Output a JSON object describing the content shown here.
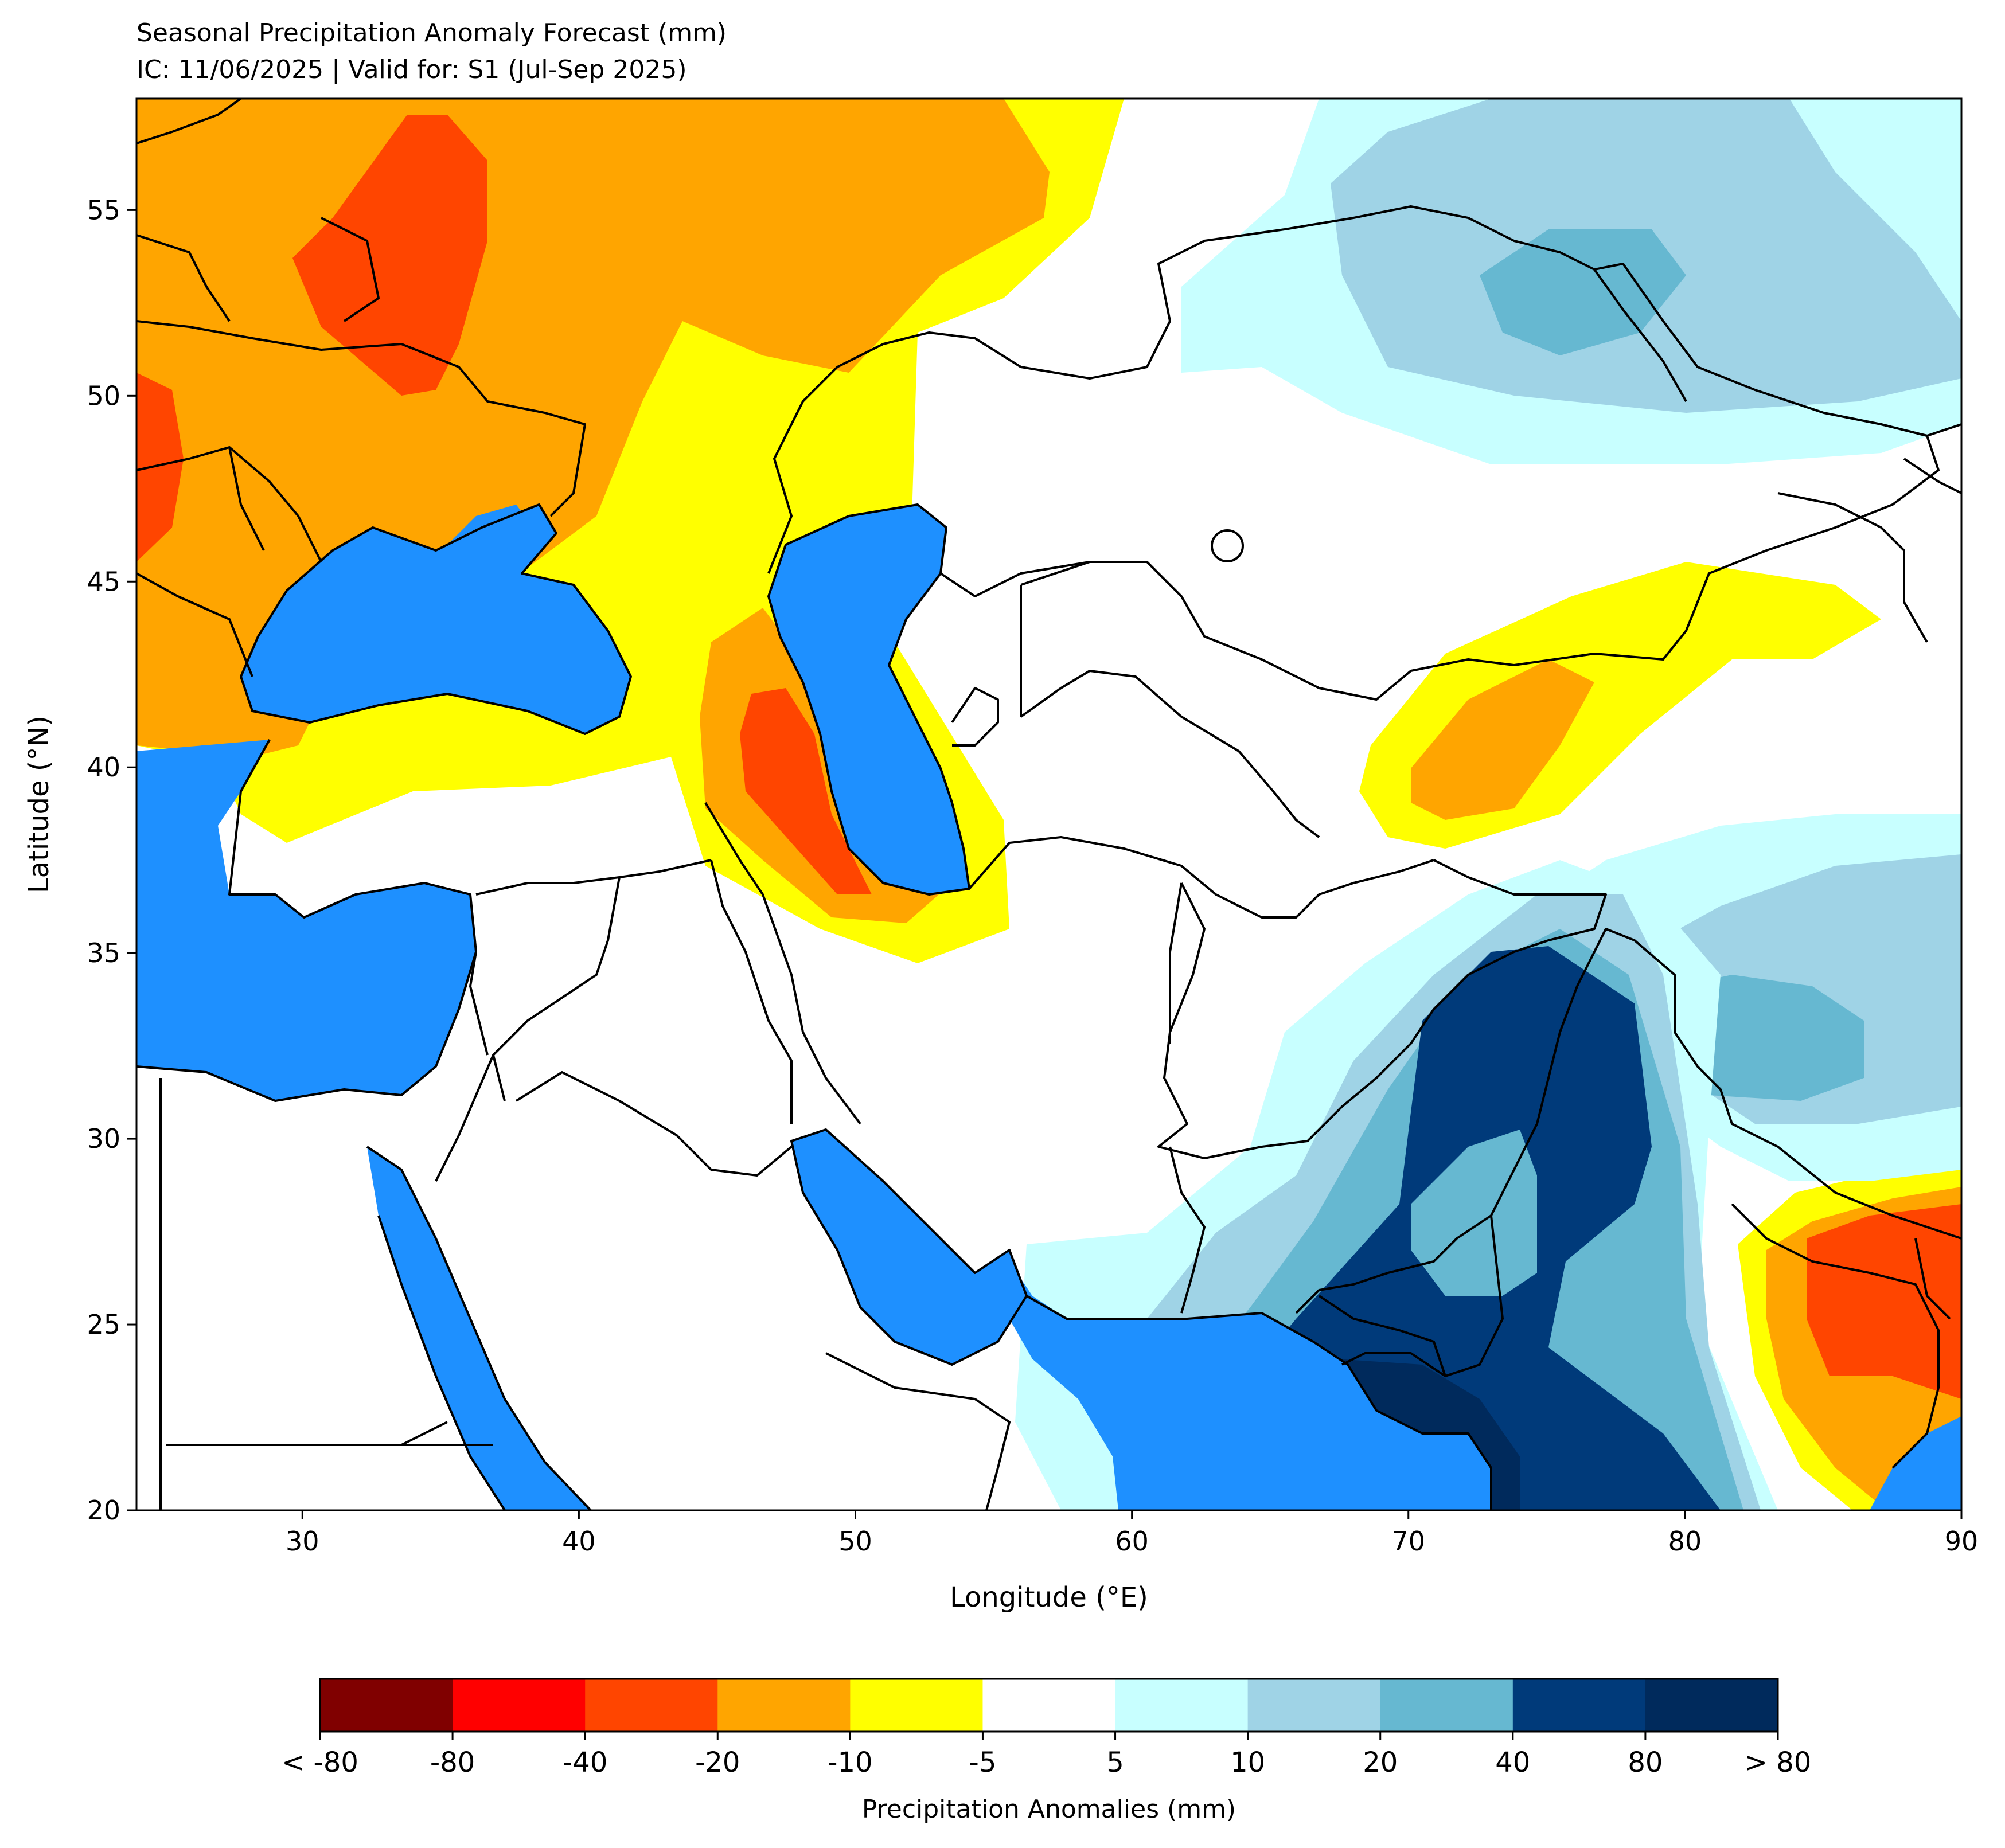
{
  "map": {
    "title_line1": "Seasonal Precipitation Anomaly Forecast (mm)",
    "title_line2": "IC: 11/06/2025 | Valid for: S1 (Jul-Sep 2025)",
    "xlabel": "Longitude (°E)",
    "ylabel": "Latitude (°N)",
    "lon_range": [
      24,
      90
    ],
    "lat_range": [
      20,
      58
    ],
    "x_ticks": [
      {
        "value": 30,
        "label": "30"
      },
      {
        "value": 40,
        "label": "40"
      },
      {
        "value": 50,
        "label": "50"
      },
      {
        "value": 60,
        "label": "60"
      },
      {
        "value": 70,
        "label": "70"
      },
      {
        "value": 80,
        "label": "80"
      },
      {
        "value": 90,
        "label": "90"
      }
    ],
    "y_ticks": [
      {
        "value": 20,
        "label": "20"
      },
      {
        "value": 25,
        "label": "25"
      },
      {
        "value": 30,
        "label": "30"
      },
      {
        "value": 35,
        "label": "35"
      },
      {
        "value": 40,
        "label": "40"
      },
      {
        "value": 45,
        "label": "45"
      },
      {
        "value": 50,
        "label": "50"
      },
      {
        "value": 55,
        "label": "55"
      }
    ],
    "water_color": "#1e90ff",
    "border_color": "#000000"
  },
  "colorbar": {
    "label": "Precipitation Anomalies (mm)",
    "colors": [
      "#800000",
      "#ff0000",
      "#ff4500",
      "#ffa500",
      "#ffff00",
      "#ffffff",
      "#c8ffff",
      "#9fd3e6",
      "#66b8d1",
      "#003a7a",
      "#002a5c"
    ],
    "tick_labels": [
      "< -80",
      "-80",
      "-40",
      "-20",
      "-10",
      "-5",
      "5",
      "10",
      "20",
      "40",
      "80",
      "> 80"
    ]
  }
}
